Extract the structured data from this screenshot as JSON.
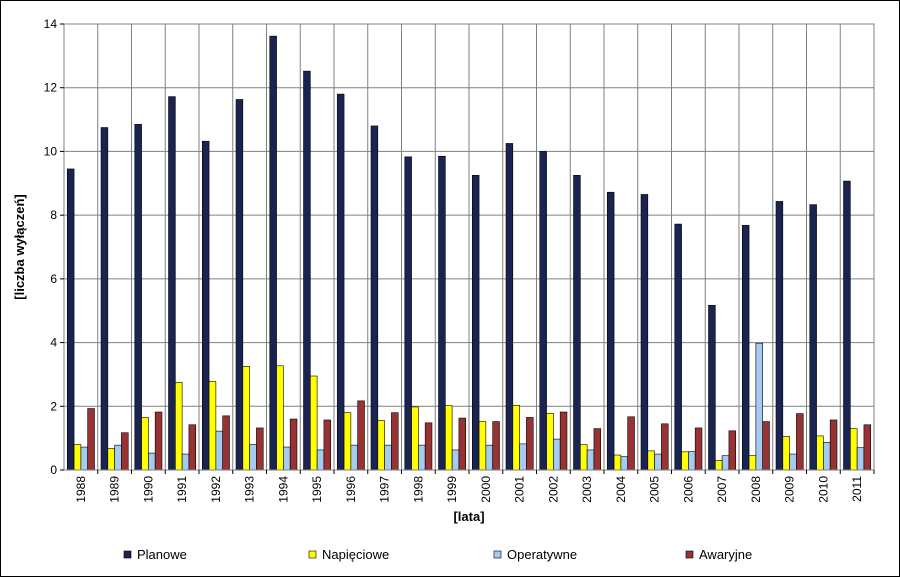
{
  "chart_data": {
    "type": "bar",
    "xlabel": "[lata]",
    "ylabel": "[liczba wyłączeń]",
    "ylim": [
      0,
      14
    ],
    "yticks": [
      "0",
      "2",
      "4",
      "6",
      "8",
      "10",
      "12",
      "14"
    ],
    "grid": true,
    "legend_position": "bottom",
    "categories": [
      "1988",
      "1989",
      "1990",
      "1991",
      "1992",
      "1993",
      "1994",
      "1995",
      "1996",
      "1997",
      "1998",
      "1999",
      "2000",
      "2001",
      "2002",
      "2003",
      "2004",
      "2005",
      "2006",
      "2007",
      "2008",
      "2009",
      "2010",
      "2011"
    ],
    "series": [
      {
        "name": "Planowe",
        "color": "#1b2451",
        "values": [
          9.45,
          10.75,
          10.85,
          11.72,
          10.32,
          11.63,
          13.62,
          12.52,
          11.8,
          10.8,
          9.83,
          9.85,
          9.25,
          10.25,
          10.0,
          9.25,
          8.72,
          8.65,
          7.72,
          5.17,
          7.68,
          8.43,
          8.33,
          9.07
        ]
      },
      {
        "name": "Napięciowe",
        "color": "#ffff00",
        "values": [
          0.8,
          0.68,
          1.65,
          2.75,
          2.78,
          3.25,
          3.27,
          2.95,
          1.8,
          1.55,
          1.98,
          2.02,
          1.52,
          2.03,
          1.78,
          0.8,
          0.47,
          0.6,
          0.57,
          0.3,
          0.45,
          1.05,
          1.07,
          1.3
        ]
      },
      {
        "name": "Operatywne",
        "color": "#a6caf0",
        "values": [
          0.72,
          0.78,
          0.53,
          0.5,
          1.22,
          0.8,
          0.72,
          0.63,
          0.78,
          0.78,
          0.78,
          0.63,
          0.78,
          0.82,
          0.97,
          0.63,
          0.42,
          0.5,
          0.58,
          0.45,
          3.98,
          0.5,
          0.87,
          0.7
        ]
      },
      {
        "name": "Awaryjne",
        "color": "#993333",
        "values": [
          1.93,
          1.17,
          1.82,
          1.42,
          1.7,
          1.32,
          1.6,
          1.57,
          2.17,
          1.8,
          1.48,
          1.63,
          1.52,
          1.65,
          1.82,
          1.3,
          1.67,
          1.45,
          1.32,
          1.23,
          1.52,
          1.77,
          1.57,
          1.42
        ]
      }
    ]
  }
}
